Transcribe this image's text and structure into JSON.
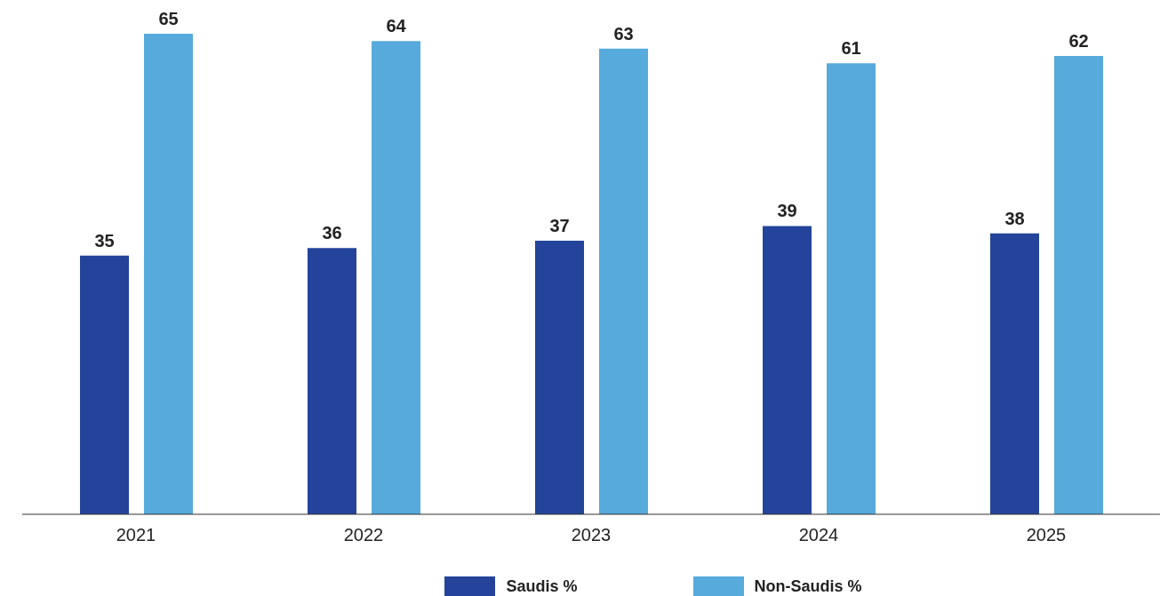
{
  "chart_data": {
    "type": "bar",
    "categories": [
      "2021",
      "2022",
      "2023",
      "2024",
      "2025"
    ],
    "series": [
      {
        "name": "Saudis %",
        "color": "#23449a",
        "values": [
          35,
          36,
          37,
          39,
          38
        ]
      },
      {
        "name": "Non-Saudis %",
        "color": "#57aadc",
        "values": [
          65,
          64,
          63,
          61,
          62
        ]
      }
    ],
    "data_labels": true,
    "legend": "bottom",
    "grid": false
  }
}
